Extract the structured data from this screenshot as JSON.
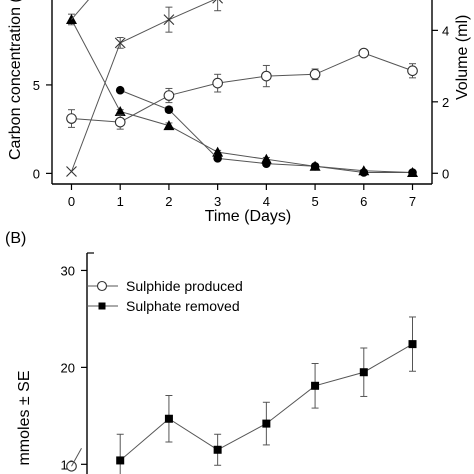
{
  "chart_data": [
    {
      "type": "line",
      "ylabel": "Carbon concentration (m",
      "y2label": "Volume (ml)",
      "xlabel": "Time (Days)",
      "x_ticks": [
        "0",
        "1",
        "2",
        "3",
        "4",
        "5",
        "6",
        "7"
      ],
      "y_ticks": [
        "0",
        "5"
      ],
      "y2_ticks": [
        "0",
        "2",
        "4"
      ],
      "xlim": [
        -0.4,
        7.4
      ],
      "ylim": [
        -0.6,
        9.8
      ],
      "y2lim": [
        -0.3,
        4.85
      ],
      "series": [
        {
          "marker": "triangle",
          "axis": "left",
          "x": [
            0,
            1,
            2,
            3,
            4,
            5,
            6,
            7
          ],
          "y": [
            8.7,
            3.5,
            2.7,
            1.2,
            0.8,
            0.4,
            0.15,
            0.05
          ],
          "err": [
            0.3,
            0.1,
            0.15,
            0.1,
            0.1,
            0.05,
            0.05,
            0.05
          ]
        },
        {
          "marker": "circle-filled",
          "axis": "left",
          "x": [
            1,
            2,
            3,
            4,
            5,
            6,
            7
          ],
          "y": [
            4.7,
            3.6,
            0.85,
            0.55,
            0.4,
            0.05,
            0.05
          ],
          "err": [
            0,
            0.15,
            0.1,
            0.1,
            0.05,
            0.05,
            0.05
          ]
        },
        {
          "marker": "circle-open",
          "axis": "left",
          "x": [
            0,
            1,
            2,
            3,
            4,
            5,
            6,
            7
          ],
          "y": [
            3.1,
            2.9,
            4.4,
            5.1,
            5.5,
            5.6,
            6.8,
            5.8
          ],
          "err": [
            0.5,
            0.4,
            0.4,
            0.5,
            0.6,
            0.3,
            0.1,
            0.4
          ]
        },
        {
          "marker": "cross",
          "axis": "right",
          "x": [
            0,
            1,
            2,
            3
          ],
          "y": [
            0.05,
            3.65,
            4.3,
            4.9
          ],
          "err": [
            0,
            0.15,
            0.35,
            0.35
          ]
        }
      ]
    },
    {
      "type": "line",
      "panel_label": "(B)",
      "ylabel": "mmoles ± SE",
      "y_ticks": [
        "10",
        "20",
        "30"
      ],
      "ylim": [
        9.0,
        31.8
      ],
      "legend": {
        "position": "top-left",
        "items": [
          "Sulphide produced",
          "Sulphate removed"
        ]
      },
      "series": [
        {
          "name": "Sulphide produced",
          "marker": "circle-open",
          "x": [
            0
          ],
          "y": [
            9.8
          ],
          "err": [
            0
          ]
        },
        {
          "name": "Sulphate removed",
          "marker": "square-filled",
          "x": [
            1,
            2,
            3,
            4,
            5,
            6,
            7
          ],
          "y": [
            10.4,
            14.7,
            11.5,
            14.2,
            18.1,
            19.5,
            22.4
          ],
          "err": [
            2.7,
            2.4,
            1.6,
            2.2,
            2.3,
            2.5,
            2.8
          ]
        }
      ]
    }
  ]
}
